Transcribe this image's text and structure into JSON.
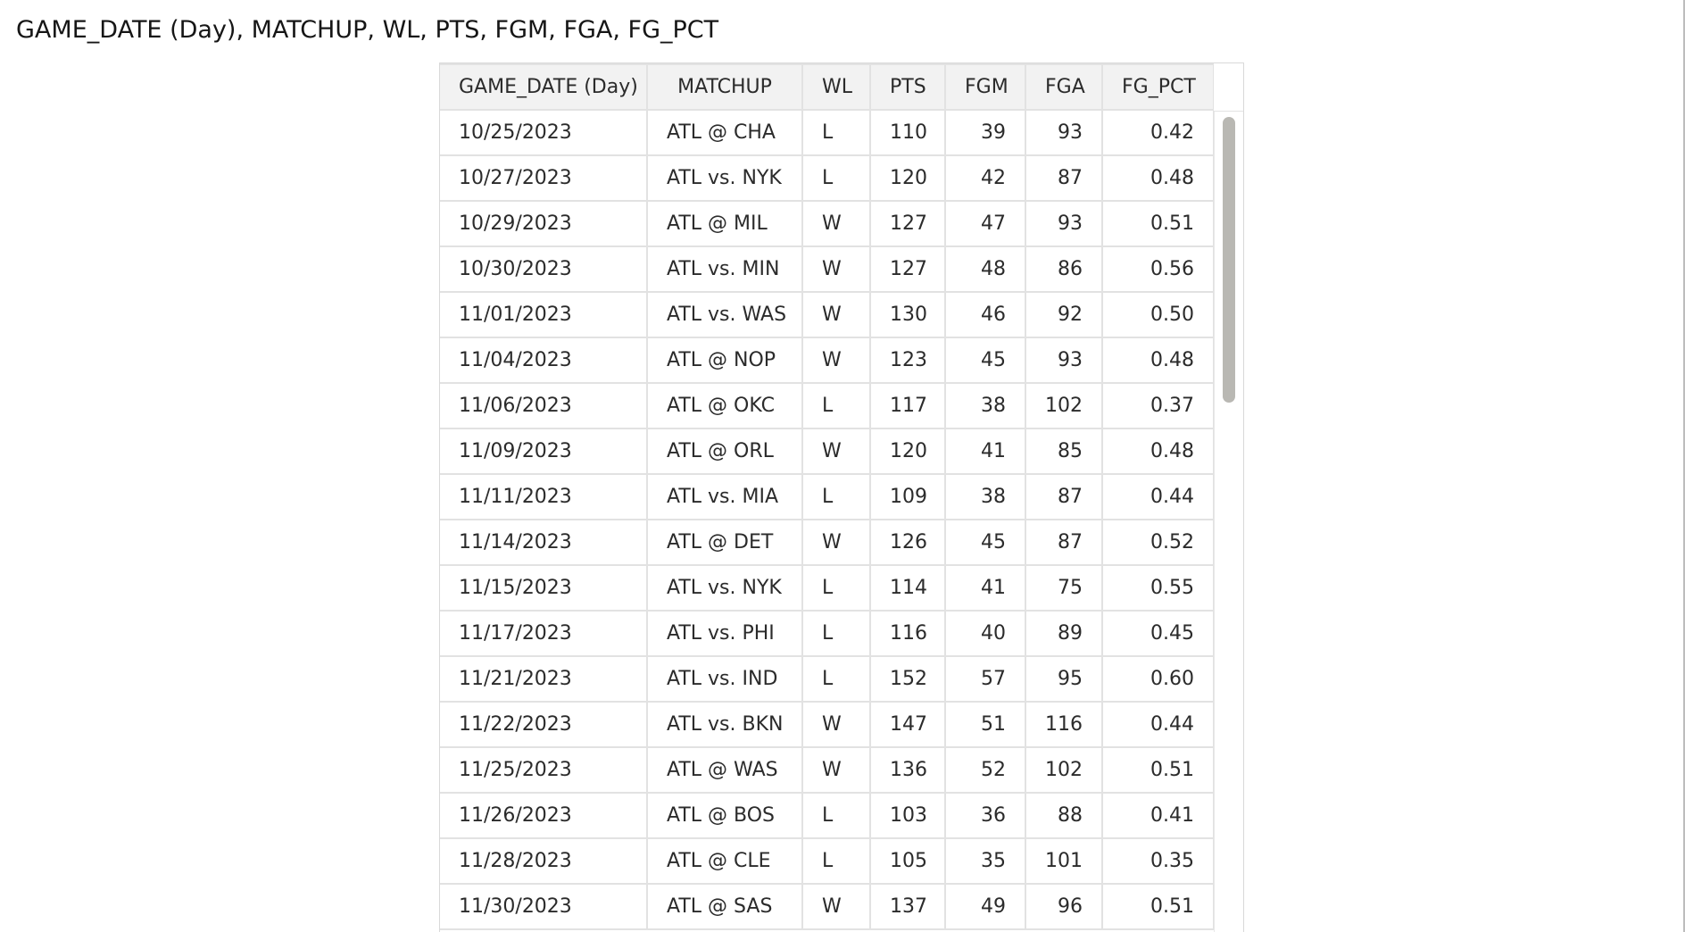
{
  "title": "GAME_DATE (Day), MATCHUP, WL, PTS, FGM, FGA, FG_PCT",
  "table": {
    "columns": [
      "GAME_DATE (Day)",
      "MATCHUP",
      "WL",
      "PTS",
      "FGM",
      "FGA",
      "FG_PCT"
    ],
    "rows": [
      [
        "10/25/2023",
        "ATL @ CHA",
        "L",
        "110",
        "39",
        "93",
        "0.42"
      ],
      [
        "10/27/2023",
        "ATL vs. NYK",
        "L",
        "120",
        "42",
        "87",
        "0.48"
      ],
      [
        "10/29/2023",
        "ATL @ MIL",
        "W",
        "127",
        "47",
        "93",
        "0.51"
      ],
      [
        "10/30/2023",
        "ATL vs. MIN",
        "W",
        "127",
        "48",
        "86",
        "0.56"
      ],
      [
        "11/01/2023",
        "ATL vs. WAS",
        "W",
        "130",
        "46",
        "92",
        "0.50"
      ],
      [
        "11/04/2023",
        "ATL @ NOP",
        "W",
        "123",
        "45",
        "93",
        "0.48"
      ],
      [
        "11/06/2023",
        "ATL @ OKC",
        "L",
        "117",
        "38",
        "102",
        "0.37"
      ],
      [
        "11/09/2023",
        "ATL @ ORL",
        "W",
        "120",
        "41",
        "85",
        "0.48"
      ],
      [
        "11/11/2023",
        "ATL vs. MIA",
        "L",
        "109",
        "38",
        "87",
        "0.44"
      ],
      [
        "11/14/2023",
        "ATL @ DET",
        "W",
        "126",
        "45",
        "87",
        "0.52"
      ],
      [
        "11/15/2023",
        "ATL vs. NYK",
        "L",
        "114",
        "41",
        "75",
        "0.55"
      ],
      [
        "11/17/2023",
        "ATL vs. PHI",
        "L",
        "116",
        "40",
        "89",
        "0.45"
      ],
      [
        "11/21/2023",
        "ATL vs. IND",
        "L",
        "152",
        "57",
        "95",
        "0.60"
      ],
      [
        "11/22/2023",
        "ATL vs. BKN",
        "W",
        "147",
        "51",
        "116",
        "0.44"
      ],
      [
        "11/25/2023",
        "ATL @ WAS",
        "W",
        "136",
        "52",
        "102",
        "0.51"
      ],
      [
        "11/26/2023",
        "ATL @ BOS",
        "L",
        "103",
        "36",
        "88",
        "0.41"
      ],
      [
        "11/28/2023",
        "ATL @ CLE",
        "L",
        "105",
        "35",
        "101",
        "0.35"
      ],
      [
        "11/30/2023",
        "ATL @ SAS",
        "W",
        "137",
        "49",
        "96",
        "0.51"
      ]
    ]
  }
}
